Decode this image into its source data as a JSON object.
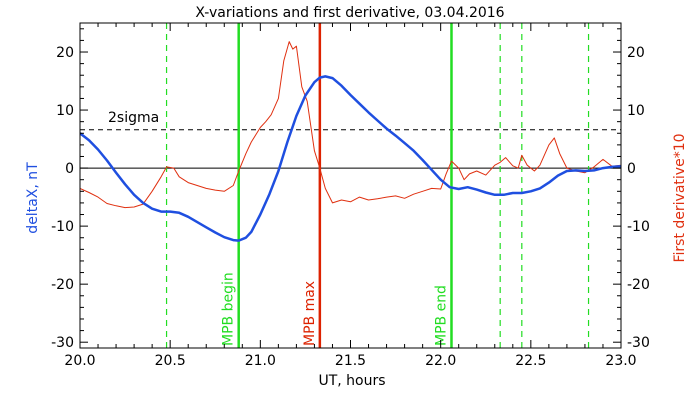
{
  "chart_data": {
    "type": "line",
    "title": "X-variations and first derivative, 03.04.2016",
    "xlabel": "UT, hours",
    "ylabel_left": "deltaX, nT",
    "ylabel_right": "First derivative*10",
    "xlim": [
      20.0,
      23.0
    ],
    "ylim": [
      -31,
      25
    ],
    "xticks": [
      20.0,
      20.5,
      21.0,
      21.5,
      22.0,
      22.5,
      23.0
    ],
    "xtick_labels": [
      "20.0",
      "20.5",
      "21.0",
      "21.5",
      "22.0",
      "22.5",
      "23.0"
    ],
    "yticks": [
      -30,
      -20,
      -10,
      0,
      10,
      20
    ],
    "ytick_labels": [
      "-30",
      "-20",
      "-10",
      "0",
      "10",
      "20"
    ],
    "colors": {
      "deltaX": "#1f4fe0",
      "derivative": "#e03010",
      "mpb_boundary": "#22dd22",
      "mpb_max": "#dd2200",
      "axis": "#000000"
    },
    "threshold": {
      "label": "2sigma",
      "value": 6.6
    },
    "zero_line": 0,
    "vlines": [
      {
        "x": 20.88,
        "label": "MPB begin",
        "kind": "boundary"
      },
      {
        "x": 21.33,
        "label": "MPB max",
        "kind": "max"
      },
      {
        "x": 22.06,
        "label": "MPB end",
        "kind": "boundary"
      }
    ],
    "dashed_vlines": [
      20.48,
      22.33,
      22.45,
      22.82
    ],
    "series": [
      {
        "name": "deltaX, nT",
        "color": "#1f4fe0",
        "x": [
          20.0,
          20.05,
          20.1,
          20.15,
          20.2,
          20.25,
          20.3,
          20.35,
          20.4,
          20.45,
          20.5,
          20.55,
          20.6,
          20.65,
          20.7,
          20.75,
          20.8,
          20.85,
          20.88,
          20.92,
          20.95,
          21.0,
          21.05,
          21.1,
          21.15,
          21.2,
          21.25,
          21.3,
          21.33,
          21.36,
          21.4,
          21.45,
          21.5,
          21.55,
          21.6,
          21.65,
          21.7,
          21.75,
          21.8,
          21.85,
          21.9,
          21.95,
          22.0,
          22.05,
          22.1,
          22.15,
          22.2,
          22.25,
          22.3,
          22.35,
          22.4,
          22.45,
          22.5,
          22.55,
          22.6,
          22.65,
          22.7,
          22.75,
          22.8,
          22.85,
          22.9,
          22.95,
          23.0
        ],
        "y": [
          6.0,
          4.8,
          3.2,
          1.3,
          -0.8,
          -2.8,
          -4.6,
          -6.0,
          -7.0,
          -7.5,
          -7.5,
          -7.7,
          -8.4,
          -9.3,
          -10.2,
          -11.1,
          -11.9,
          -12.4,
          -12.5,
          -12.0,
          -11.0,
          -8.0,
          -4.5,
          -0.5,
          4.5,
          9.0,
          12.5,
          14.8,
          15.6,
          15.8,
          15.5,
          14.2,
          12.6,
          11.1,
          9.6,
          8.2,
          6.8,
          5.6,
          4.3,
          3.0,
          1.4,
          -0.3,
          -2.0,
          -3.3,
          -3.6,
          -3.3,
          -3.7,
          -4.2,
          -4.6,
          -4.6,
          -4.3,
          -4.3,
          -4.0,
          -3.5,
          -2.5,
          -1.3,
          -0.5,
          -0.4,
          -0.5,
          -0.4,
          0.0,
          0.2,
          0.3
        ]
      },
      {
        "name": "First derivative*10",
        "color": "#e03010",
        "x": [
          20.0,
          20.05,
          20.1,
          20.15,
          20.2,
          20.25,
          20.3,
          20.35,
          20.4,
          20.45,
          20.48,
          20.52,
          20.55,
          20.6,
          20.65,
          20.7,
          20.75,
          20.8,
          20.85,
          20.88,
          20.92,
          20.95,
          21.0,
          21.03,
          21.06,
          21.1,
          21.13,
          21.16,
          21.18,
          21.2,
          21.23,
          21.26,
          21.3,
          21.33,
          21.36,
          21.4,
          21.45,
          21.5,
          21.55,
          21.6,
          21.65,
          21.7,
          21.75,
          21.8,
          21.85,
          21.9,
          21.95,
          22.0,
          22.03,
          22.06,
          22.1,
          22.13,
          22.16,
          22.2,
          22.25,
          22.3,
          22.33,
          22.36,
          22.4,
          22.43,
          22.45,
          22.48,
          22.52,
          22.55,
          22.6,
          22.63,
          22.66,
          22.7,
          22.75,
          22.8,
          22.85,
          22.9,
          22.95,
          23.0
        ],
        "y": [
          -3.5,
          -4.2,
          -5.0,
          -6.1,
          -6.5,
          -6.8,
          -6.7,
          -6.2,
          -4.0,
          -1.5,
          0.2,
          0.0,
          -1.5,
          -2.5,
          -3.0,
          -3.5,
          -3.8,
          -4.0,
          -3.0,
          -0.5,
          2.5,
          4.5,
          7.0,
          8.0,
          9.2,
          12.0,
          18.5,
          21.8,
          20.5,
          21.0,
          14.0,
          11.5,
          3.0,
          0.0,
          -3.5,
          -6.0,
          -5.5,
          -5.8,
          -5.0,
          -5.5,
          -5.3,
          -5.0,
          -4.8,
          -5.2,
          -4.5,
          -4.0,
          -3.5,
          -3.6,
          -1.0,
          1.2,
          0.0,
          -2.0,
          -1.0,
          -0.5,
          -1.2,
          0.5,
          1.0,
          1.8,
          0.4,
          0.0,
          2.2,
          0.5,
          -0.5,
          0.5,
          4.0,
          5.2,
          2.5,
          0.0,
          -0.5,
          -0.8,
          0.2,
          1.5,
          0.3,
          0.5
        ]
      }
    ]
  }
}
